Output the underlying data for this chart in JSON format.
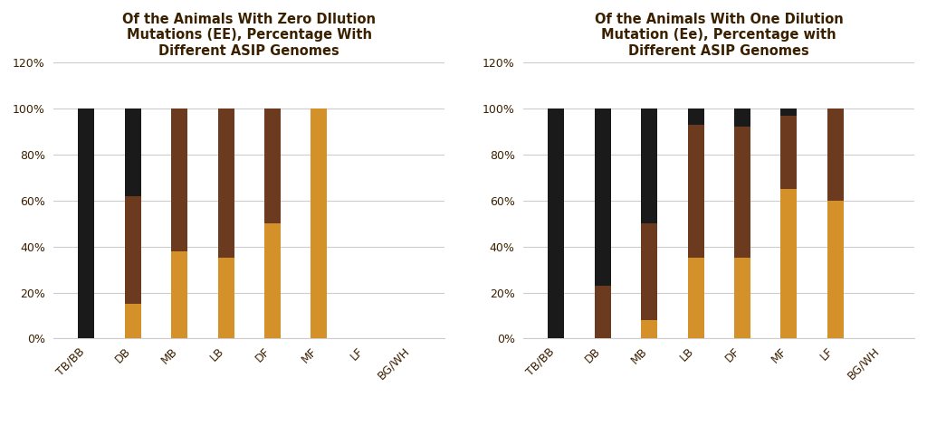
{
  "chart1": {
    "title": "Of the Animals With Zero DIlution\nMutations (EE), Percentage With\nDifferent ASIP Genomes",
    "categories": [
      "TB/BB",
      "DB",
      "MB",
      "LB",
      "DF",
      "MF",
      "LF",
      "BG/WH"
    ],
    "AA": [
      0,
      15,
      38,
      35,
      50,
      100,
      0,
      0
    ],
    "Aa": [
      0,
      47,
      62,
      65,
      50,
      0,
      0,
      0
    ],
    "aa": [
      100,
      38,
      0,
      0,
      0,
      0,
      0,
      0
    ]
  },
  "chart2": {
    "title": "Of the Animals With One Dilution\nMutation (Ee), Percentage with\nDifferent ASIP Genomes",
    "categories": [
      "TB/BB",
      "DB",
      "MB",
      "LB",
      "DF",
      "MF",
      "LF",
      "BG/WH"
    ],
    "AA": [
      0,
      0,
      8,
      35,
      35,
      65,
      60,
      0
    ],
    "Aa": [
      0,
      23,
      42,
      58,
      57,
      32,
      40,
      0
    ],
    "aa": [
      100,
      77,
      50,
      7,
      8,
      3,
      0,
      0
    ]
  },
  "color_AA": "#D4912A",
  "color_Aa": "#6B3A1F",
  "color_aa": "#1A1A1A",
  "title_color": "#3B2000",
  "ylim": [
    0,
    1.2
  ],
  "yticks": [
    0,
    0.2,
    0.4,
    0.6,
    0.8,
    1.0,
    1.2
  ],
  "ytick_labels": [
    "0%",
    "20%",
    "40%",
    "60%",
    "80%",
    "100%",
    "120%"
  ],
  "bg_color": "#FFFFFF",
  "title_fontsize": 10.5,
  "tick_fontsize": 9,
  "legend_fontsize": 10,
  "bar_width": 0.35,
  "grid_color": "#CCCCCC"
}
